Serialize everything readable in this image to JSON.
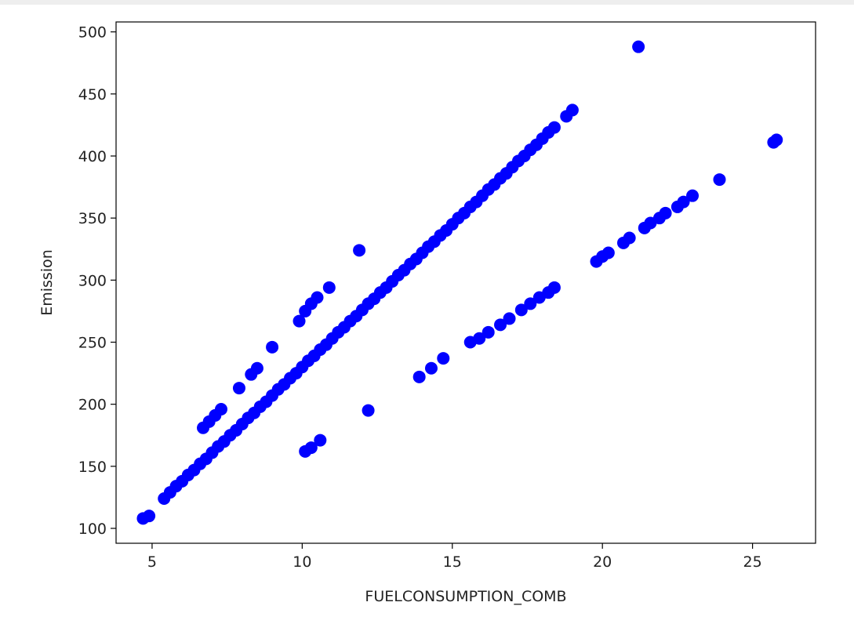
{
  "chart_data": {
    "type": "scatter",
    "title": "",
    "xlabel": "FUELCONSUMPTION_COMB",
    "ylabel": "Emission",
    "xlim": [
      3.8,
      27.1
    ],
    "ylim": [
      88,
      508
    ],
    "xticks": [
      5,
      10,
      15,
      20,
      25
    ],
    "yticks": [
      100,
      150,
      200,
      250,
      300,
      350,
      400,
      450,
      500
    ],
    "grid": false,
    "legend": "none",
    "marker_color": "#0000ff",
    "series": [
      {
        "color": "#0000ff",
        "x": [
          4.7,
          4.9,
          5.4,
          5.6,
          5.8,
          6.0,
          6.2,
          6.4,
          6.6,
          6.8,
          7.0,
          7.2,
          7.4,
          7.6,
          7.8,
          8.0,
          8.2,
          8.4,
          8.6,
          8.8,
          9.0,
          9.2,
          9.4,
          9.6,
          9.8,
          10.0,
          10.2,
          10.4,
          10.6,
          10.8,
          11.0,
          11.2,
          11.4,
          11.6,
          11.8,
          12.0,
          12.2,
          12.4,
          12.6,
          12.8,
          13.0,
          13.2,
          13.4,
          13.6,
          13.8,
          14.0,
          14.2,
          14.4,
          14.6,
          14.8,
          15.0,
          15.2,
          15.4,
          15.6,
          15.8,
          16.0,
          16.2,
          16.4,
          16.6,
          16.8,
          17.0,
          17.2,
          17.4,
          17.6,
          17.8,
          18.0,
          18.2,
          18.4,
          18.8,
          19.0,
          6.7,
          6.9,
          7.1,
          7.3,
          7.9,
          8.3,
          8.5,
          9.0,
          9.9,
          10.1,
          10.3,
          10.5,
          10.9,
          11.9,
          12.2,
          10.1,
          10.3,
          10.6,
          13.9,
          14.3,
          14.7,
          15.6,
          15.9,
          16.2,
          16.6,
          16.9,
          17.3,
          17.6,
          17.9,
          18.2,
          18.4,
          19.8,
          20.0,
          20.2,
          20.7,
          20.9,
          21.4,
          21.6,
          21.9,
          22.1,
          22.5,
          22.7,
          23.0,
          23.9,
          25.7,
          25.8,
          21.2
        ],
        "y": [
          108,
          110,
          124,
          129,
          134,
          138,
          143,
          147,
          152,
          156,
          161,
          166,
          170,
          175,
          179,
          184,
          189,
          193,
          198,
          202,
          207,
          212,
          216,
          221,
          225,
          230,
          235,
          239,
          244,
          248,
          253,
          258,
          262,
          267,
          271,
          276,
          281,
          285,
          290,
          294,
          299,
          304,
          308,
          313,
          317,
          322,
          327,
          331,
          336,
          340,
          345,
          350,
          354,
          359,
          363,
          368,
          373,
          377,
          382,
          386,
          391,
          396,
          400,
          405,
          409,
          414,
          419,
          423,
          432,
          437,
          181,
          186,
          191,
          196,
          213,
          224,
          229,
          246,
          267,
          275,
          281,
          286,
          294,
          324,
          195,
          162,
          165,
          171,
          222,
          229,
          237,
          250,
          253,
          258,
          264,
          269,
          276,
          281,
          286,
          290,
          294,
          315,
          319,
          322,
          330,
          334,
          342,
          346,
          350,
          354,
          359,
          363,
          368,
          381,
          411,
          413,
          488
        ]
      }
    ]
  }
}
